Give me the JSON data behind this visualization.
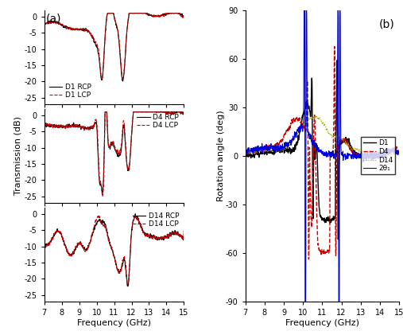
{
  "freq_range": [
    7,
    15
  ],
  "transmission_ylim": [
    -27,
    2
  ],
  "rotation_ylim": [
    -90,
    90
  ],
  "xlabel": "Frequency (GHz)",
  "ylabel_trans": "Transmission (dB)",
  "ylabel_rot": "Rotation angle (deg)",
  "label_a": "(a)",
  "label_b": "(b)",
  "legend_top": [
    "D1 RCP",
    "D1 LCP"
  ],
  "legend_mid": [
    "D4 RCP",
    "D4 LCP"
  ],
  "legend_bot": [
    "D14 RCP",
    "D14 LCP"
  ],
  "legend_rot": [
    "D1",
    "D4",
    "D14",
    "2θ₁"
  ],
  "colors": {
    "rcp": "#000000",
    "lcp": "#cc0000",
    "D1": "#000000",
    "D4": "#cc0000",
    "D14": "#a0a000",
    "2theta": "#0000dd"
  },
  "background": "#ffffff"
}
